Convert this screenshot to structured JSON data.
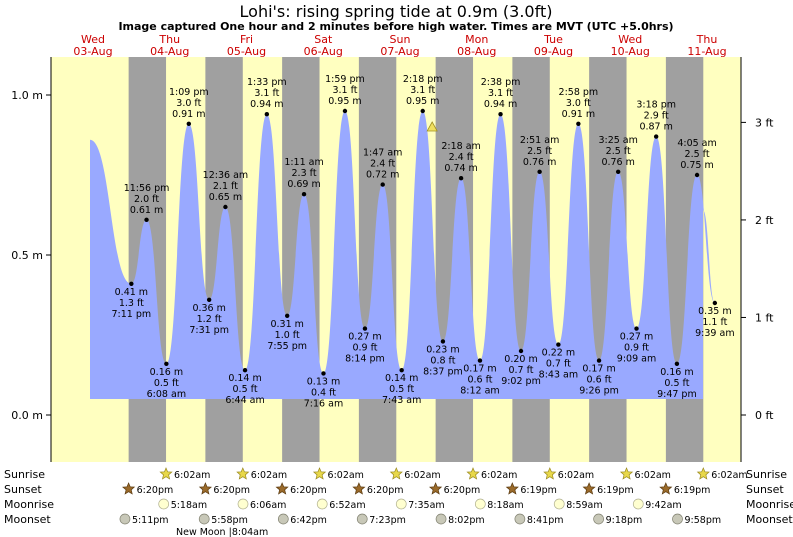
{
  "title": "Lohi's: rising  spring tide at 0.9m (3.0ft)",
  "subtitle": "Image captured One hour and 2 minutes before high water. Times are MVT (UTC +5.0hrs)",
  "days": [
    {
      "weekday": "Wed",
      "date": "03-Aug"
    },
    {
      "weekday": "Thu",
      "date": "04-Aug"
    },
    {
      "weekday": "Fri",
      "date": "05-Aug"
    },
    {
      "weekday": "Sat",
      "date": "06-Aug"
    },
    {
      "weekday": "Sun",
      "date": "07-Aug"
    },
    {
      "weekday": "Mon",
      "date": "08-Aug"
    },
    {
      "weekday": "Tue",
      "date": "09-Aug"
    },
    {
      "weekday": "Wed",
      "date": "10-Aug"
    },
    {
      "weekday": "Thu",
      "date": "11-Aug"
    }
  ],
  "chart_data": {
    "type": "area",
    "series": [
      {
        "name": "",
        "unit": "m"
      }
    ],
    "ylim": [
      -0.15,
      1.1
    ],
    "yticks_m": [
      "0.0 m",
      "0.5 m",
      "1.0 m"
    ],
    "yticks_ft": [
      "0 ft",
      "1 ft",
      "2 ft",
      "3 ft"
    ],
    "start_height_m": 0.86,
    "end_height_m": 0.64,
    "current_marker": {
      "time": "07-Aug ~17:15",
      "height_m": 0.9
    },
    "extremes": [
      {
        "day": 0,
        "time": "7:11 pm",
        "m": "0.41 m",
        "ft": "1.3 ft",
        "value": 0.41,
        "kind": "low"
      },
      {
        "day": 0,
        "time": "11:56 pm",
        "m": "0.61 m",
        "ft": "2.0 ft",
        "value": 0.61,
        "kind": "high"
      },
      {
        "day": 1,
        "time": "6:08 am",
        "m": "0.16 m",
        "ft": "0.5 ft",
        "value": 0.16,
        "kind": "low"
      },
      {
        "day": 1,
        "time": "1:09 pm",
        "m": "0.91 m",
        "ft": "3.0 ft",
        "value": 0.91,
        "kind": "high"
      },
      {
        "day": 1,
        "time": "7:31 pm",
        "m": "0.36 m",
        "ft": "1.2 ft",
        "value": 0.36,
        "kind": "low"
      },
      {
        "day": 2,
        "time": "12:36 am",
        "m": "0.65 m",
        "ft": "2.1 ft",
        "value": 0.65,
        "kind": "high"
      },
      {
        "day": 2,
        "time": "6:44 am",
        "m": "0.14 m",
        "ft": "0.5 ft",
        "value": 0.14,
        "kind": "low"
      },
      {
        "day": 2,
        "time": "1:33 pm",
        "m": "0.94 m",
        "ft": "3.1 ft",
        "value": 0.94,
        "kind": "high"
      },
      {
        "day": 2,
        "time": "7:55 pm",
        "m": "0.31 m",
        "ft": "1.0 ft",
        "value": 0.31,
        "kind": "low"
      },
      {
        "day": 3,
        "time": "1:11 am",
        "m": "0.69 m",
        "ft": "2.3 ft",
        "value": 0.69,
        "kind": "high"
      },
      {
        "day": 3,
        "time": "7:16 am",
        "m": "0.13 m",
        "ft": "0.4 ft",
        "value": 0.13,
        "kind": "low"
      },
      {
        "day": 3,
        "time": "1:59 pm",
        "m": "0.95 m",
        "ft": "3.1 ft",
        "value": 0.95,
        "kind": "high"
      },
      {
        "day": 3,
        "time": "8:14 pm",
        "m": "0.27 m",
        "ft": "0.9 ft",
        "value": 0.27,
        "kind": "low"
      },
      {
        "day": 4,
        "time": "1:47 am",
        "m": "0.72 m",
        "ft": "2.4 ft",
        "value": 0.72,
        "kind": "high"
      },
      {
        "day": 4,
        "time": "7:43 am",
        "m": "0.14 m",
        "ft": "0.5 ft",
        "value": 0.14,
        "kind": "low"
      },
      {
        "day": 4,
        "time": "2:18 pm",
        "m": "0.95 m",
        "ft": "3.1 ft",
        "value": 0.95,
        "kind": "high"
      },
      {
        "day": 4,
        "time": "8:37 pm",
        "m": "0.23 m",
        "ft": "0.8 ft",
        "value": 0.23,
        "kind": "low"
      },
      {
        "day": 5,
        "time": "2:18 am",
        "m": "0.74 m",
        "ft": "2.4 ft",
        "value": 0.74,
        "kind": "high"
      },
      {
        "day": 5,
        "time": "8:12 am",
        "m": "0.17 m",
        "ft": "0.6 ft",
        "value": 0.17,
        "kind": "low"
      },
      {
        "day": 5,
        "time": "2:38 pm",
        "m": "0.94 m",
        "ft": "3.1 ft",
        "value": 0.94,
        "kind": "high"
      },
      {
        "day": 5,
        "time": "9:02 pm",
        "m": "0.20 m",
        "ft": "0.7 ft",
        "value": 0.2,
        "kind": "low"
      },
      {
        "day": 6,
        "time": "2:51 am",
        "m": "0.76 m",
        "ft": "2.5 ft",
        "value": 0.76,
        "kind": "high"
      },
      {
        "day": 6,
        "time": "8:43 am",
        "m": "0.22 m",
        "ft": "0.7 ft",
        "value": 0.22,
        "kind": "low"
      },
      {
        "day": 6,
        "time": "2:58 pm",
        "m": "0.91 m",
        "ft": "3.0 ft",
        "value": 0.91,
        "kind": "high"
      },
      {
        "day": 6,
        "time": "9:26 pm",
        "m": "0.17 m",
        "ft": "0.6 ft",
        "value": 0.17,
        "kind": "low"
      },
      {
        "day": 7,
        "time": "3:25 am",
        "m": "0.76 m",
        "ft": "2.5 ft",
        "value": 0.76,
        "kind": "high"
      },
      {
        "day": 7,
        "time": "9:09 am",
        "m": "0.27 m",
        "ft": "0.9 ft",
        "value": 0.27,
        "kind": "low"
      },
      {
        "day": 7,
        "time": "3:18 pm",
        "m": "0.87 m",
        "ft": "2.9 ft",
        "value": 0.87,
        "kind": "high"
      },
      {
        "day": 7,
        "time": "9:47 pm",
        "m": "0.16 m",
        "ft": "0.5 ft",
        "value": 0.16,
        "kind": "low"
      },
      {
        "day": 8,
        "time": "4:05 am",
        "m": "0.75 m",
        "ft": "2.5 ft",
        "value": 0.75,
        "kind": "high"
      },
      {
        "day": 8,
        "time": "9:39 am",
        "m": "0.35 m",
        "ft": "1.1 ft",
        "value": 0.35,
        "kind": "low"
      }
    ]
  },
  "rows": {
    "sunrise": "Sunrise",
    "sunset": "Sunset",
    "moonrise": "Moonrise",
    "moonset": "Moonset"
  },
  "sunrise": [
    {
      "day": 1,
      "time": "6:02am"
    },
    {
      "day": 2,
      "time": "6:02am"
    },
    {
      "day": 3,
      "time": "6:02am"
    },
    {
      "day": 4,
      "time": "6:02am"
    },
    {
      "day": 5,
      "time": "6:02am"
    },
    {
      "day": 6,
      "time": "6:02am"
    },
    {
      "day": 7,
      "time": "6:02am"
    },
    {
      "day": 8,
      "time": "6:02am"
    }
  ],
  "sunset": [
    {
      "day": 0,
      "time": "6:20pm"
    },
    {
      "day": 1,
      "time": "6:20pm"
    },
    {
      "day": 2,
      "time": "6:20pm"
    },
    {
      "day": 3,
      "time": "6:20pm"
    },
    {
      "day": 4,
      "time": "6:20pm"
    },
    {
      "day": 5,
      "time": "6:19pm"
    },
    {
      "day": 6,
      "time": "6:19pm"
    },
    {
      "day": 7,
      "time": "6:19pm"
    }
  ],
  "moonrise": [
    {
      "day": 1,
      "time": "5:18am"
    },
    {
      "day": 2,
      "time": "6:06am"
    },
    {
      "day": 3,
      "time": "6:52am"
    },
    {
      "day": 4,
      "time": "7:35am"
    },
    {
      "day": 5,
      "time": "8:18am"
    },
    {
      "day": 6,
      "time": "8:59am"
    },
    {
      "day": 7,
      "time": "9:42am"
    }
  ],
  "moonset": [
    {
      "day": 0,
      "time": "5:11pm"
    },
    {
      "day": 1,
      "time": "5:58pm"
    },
    {
      "day": 2,
      "time": "6:42pm"
    },
    {
      "day": 3,
      "time": "7:23pm"
    },
    {
      "day": 4,
      "time": "8:02pm"
    },
    {
      "day": 5,
      "time": "8:41pm"
    },
    {
      "day": 6,
      "time": "9:18pm"
    },
    {
      "day": 7,
      "time": "9:58pm"
    }
  ],
  "moon_phase": {
    "label": "New Moon",
    "time": "8:04am"
  },
  "colors": {
    "day": "#ffffc0",
    "night": "#a0a0a0",
    "water": "#99a9ff",
    "day_label": "#cc0000",
    "star": "#e8d84a",
    "sunset_star": "#9a6a2a",
    "moonrise": "#ffffd0",
    "moonset": "#c8c8b8"
  }
}
